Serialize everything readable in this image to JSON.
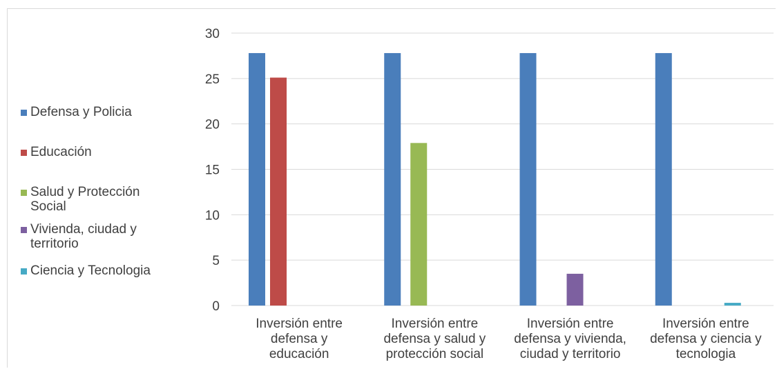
{
  "chart_data": {
    "type": "bar",
    "title": "",
    "xlabel": "",
    "ylabel": "",
    "ylim": [
      0,
      30
    ],
    "yticks": [
      0,
      5,
      10,
      15,
      20,
      25,
      30
    ],
    "grid": true,
    "legend_position": "left",
    "categories": [
      "Inversión entre defensa y educación",
      "Inversión entre defensa y salud y protección social",
      "Inversión entre defensa y vivienda, ciudad y territorio",
      "Inversión entre defensa y ciencia y tecnologia"
    ],
    "category_lines": [
      [
        "Inversión entre",
        "defensa y",
        "educación"
      ],
      [
        "Inversión entre",
        "defensa y salud y",
        "protección social"
      ],
      [
        "Inversión entre",
        "defensa y vivienda,",
        "ciudad y territorio"
      ],
      [
        "Inversión entre",
        "defensa y ciencia y",
        "tecnologia"
      ]
    ],
    "series": [
      {
        "name": "Defensa y Policia",
        "color": "#4a7ebb",
        "values": [
          27.8,
          27.8,
          27.8,
          27.8
        ]
      },
      {
        "name": "Educación",
        "color": "#be4b48",
        "values": [
          25.1,
          null,
          null,
          null
        ]
      },
      {
        "name": "Salud y Protección Social",
        "color": "#98b954",
        "values": [
          null,
          17.9,
          null,
          null
        ]
      },
      {
        "name": "Vivienda, ciudad y territorio",
        "color": "#7d60a0",
        "values": [
          null,
          null,
          3.5,
          null
        ]
      },
      {
        "name": "Ciencia y Tecnologia",
        "color": "#46aac5",
        "values": [
          null,
          null,
          null,
          0.3
        ]
      }
    ],
    "legend_lines": [
      [
        "Defensa y Policia"
      ],
      [
        "Educación"
      ],
      [
        "Salud y Protección",
        "Social"
      ],
      [
        "Vivienda, ciudad y",
        "territorio"
      ],
      [
        "Ciencia y Tecnologia"
      ]
    ],
    "colors": {
      "gridline": "#d9d9d9",
      "tick_text": "#404040"
    }
  }
}
